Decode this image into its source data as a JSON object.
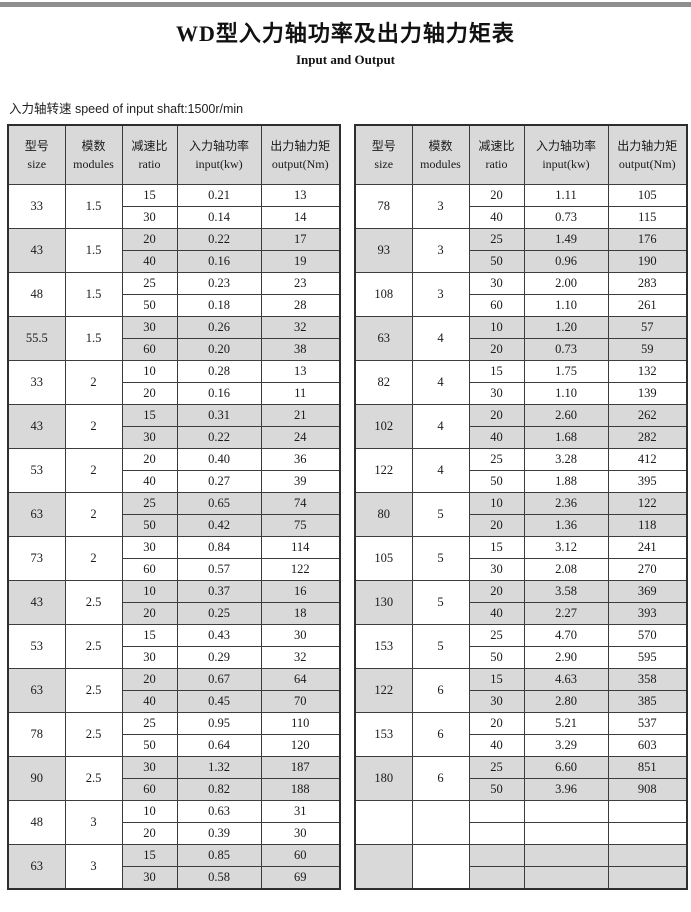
{
  "page": {
    "title": "WD型入力轴功率及出力轴力矩表",
    "subtitle": "Input and Output",
    "speed_note": "入力轴转速 speed of input shaft:1500r/min"
  },
  "colors": {
    "top_bar": "#8f8f8f",
    "header_bg": "#d9d9d9",
    "shaded_group_bg": "#d9d9d9",
    "border": "#3c3c3c"
  },
  "columns": [
    {
      "cjk": "型号",
      "en": "size"
    },
    {
      "cjk": "模数",
      "en": "modules"
    },
    {
      "cjk": "减速比",
      "en": "ratio"
    },
    {
      "cjk": "入力轴功率",
      "en": "input(kw)"
    },
    {
      "cjk": "出力轴力矩",
      "en": "output(Nm)"
    }
  ],
  "tables": [
    {
      "groups": [
        {
          "size": "33",
          "modules": "1.5",
          "shaded": false,
          "rows": [
            [
              "15",
              "0.21",
              "13"
            ],
            [
              "30",
              "0.14",
              "14"
            ]
          ]
        },
        {
          "size": "43",
          "modules": "1.5",
          "shaded": true,
          "rows": [
            [
              "20",
              "0.22",
              "17"
            ],
            [
              "40",
              "0.16",
              "19"
            ]
          ]
        },
        {
          "size": "48",
          "modules": "1.5",
          "shaded": false,
          "rows": [
            [
              "25",
              "0.23",
              "23"
            ],
            [
              "50",
              "0.18",
              "28"
            ]
          ]
        },
        {
          "size": "55.5",
          "modules": "1.5",
          "shaded": true,
          "rows": [
            [
              "30",
              "0.26",
              "32"
            ],
            [
              "60",
              "0.20",
              "38"
            ]
          ]
        },
        {
          "size": "33",
          "modules": "2",
          "shaded": false,
          "rows": [
            [
              "10",
              "0.28",
              "13"
            ],
            [
              "20",
              "0.16",
              "11"
            ]
          ]
        },
        {
          "size": "43",
          "modules": "2",
          "shaded": true,
          "rows": [
            [
              "15",
              "0.31",
              "21"
            ],
            [
              "30",
              "0.22",
              "24"
            ]
          ]
        },
        {
          "size": "53",
          "modules": "2",
          "shaded": false,
          "rows": [
            [
              "20",
              "0.40",
              "36"
            ],
            [
              "40",
              "0.27",
              "39"
            ]
          ]
        },
        {
          "size": "63",
          "modules": "2",
          "shaded": true,
          "rows": [
            [
              "25",
              "0.65",
              "74"
            ],
            [
              "50",
              "0.42",
              "75"
            ]
          ]
        },
        {
          "size": "73",
          "modules": "2",
          "shaded": false,
          "rows": [
            [
              "30",
              "0.84",
              "114"
            ],
            [
              "60",
              "0.57",
              "122"
            ]
          ]
        },
        {
          "size": "43",
          "modules": "2.5",
          "shaded": true,
          "rows": [
            [
              "10",
              "0.37",
              "16"
            ],
            [
              "20",
              "0.25",
              "18"
            ]
          ]
        },
        {
          "size": "53",
          "modules": "2.5",
          "shaded": false,
          "rows": [
            [
              "15",
              "0.43",
              "30"
            ],
            [
              "30",
              "0.29",
              "32"
            ]
          ]
        },
        {
          "size": "63",
          "modules": "2.5",
          "shaded": true,
          "rows": [
            [
              "20",
              "0.67",
              "64"
            ],
            [
              "40",
              "0.45",
              "70"
            ]
          ]
        },
        {
          "size": "78",
          "modules": "2.5",
          "shaded": false,
          "rows": [
            [
              "25",
              "0.95",
              "110"
            ],
            [
              "50",
              "0.64",
              "120"
            ]
          ]
        },
        {
          "size": "90",
          "modules": "2.5",
          "shaded": true,
          "rows": [
            [
              "30",
              "1.32",
              "187"
            ],
            [
              "60",
              "0.82",
              "188"
            ]
          ]
        },
        {
          "size": "48",
          "modules": "3",
          "shaded": false,
          "rows": [
            [
              "10",
              "0.63",
              "31"
            ],
            [
              "20",
              "0.39",
              "30"
            ]
          ]
        },
        {
          "size": "63",
          "modules": "3",
          "shaded": true,
          "rows": [
            [
              "15",
              "0.85",
              "60"
            ],
            [
              "30",
              "0.58",
              "69"
            ]
          ]
        }
      ]
    },
    {
      "groups": [
        {
          "size": "78",
          "modules": "3",
          "shaded": false,
          "rows": [
            [
              "20",
              "1.11",
              "105"
            ],
            [
              "40",
              "0.73",
              "115"
            ]
          ]
        },
        {
          "size": "93",
          "modules": "3",
          "shaded": true,
          "rows": [
            [
              "25",
              "1.49",
              "176"
            ],
            [
              "50",
              "0.96",
              "190"
            ]
          ]
        },
        {
          "size": "108",
          "modules": "3",
          "shaded": false,
          "rows": [
            [
              "30",
              "2.00",
              "283"
            ],
            [
              "60",
              "1.10",
              "261"
            ]
          ]
        },
        {
          "size": "63",
          "modules": "4",
          "shaded": true,
          "rows": [
            [
              "10",
              "1.20",
              "57"
            ],
            [
              "20",
              "0.73",
              "59"
            ]
          ]
        },
        {
          "size": "82",
          "modules": "4",
          "shaded": false,
          "rows": [
            [
              "15",
              "1.75",
              "132"
            ],
            [
              "30",
              "1.10",
              "139"
            ]
          ]
        },
        {
          "size": "102",
          "modules": "4",
          "shaded": true,
          "rows": [
            [
              "20",
              "2.60",
              "262"
            ],
            [
              "40",
              "1.68",
              "282"
            ]
          ]
        },
        {
          "size": "122",
          "modules": "4",
          "shaded": false,
          "rows": [
            [
              "25",
              "3.28",
              "412"
            ],
            [
              "50",
              "1.88",
              "395"
            ]
          ]
        },
        {
          "size": "80",
          "modules": "5",
          "shaded": true,
          "rows": [
            [
              "10",
              "2.36",
              "122"
            ],
            [
              "20",
              "1.36",
              "118"
            ]
          ]
        },
        {
          "size": "105",
          "modules": "5",
          "shaded": false,
          "rows": [
            [
              "15",
              "3.12",
              "241"
            ],
            [
              "30",
              "2.08",
              "270"
            ]
          ]
        },
        {
          "size": "130",
          "modules": "5",
          "shaded": true,
          "rows": [
            [
              "20",
              "3.58",
              "369"
            ],
            [
              "40",
              "2.27",
              "393"
            ]
          ]
        },
        {
          "size": "153",
          "modules": "5",
          "shaded": false,
          "rows": [
            [
              "25",
              "4.70",
              "570"
            ],
            [
              "50",
              "2.90",
              "595"
            ]
          ]
        },
        {
          "size": "122",
          "modules": "6",
          "shaded": true,
          "rows": [
            [
              "15",
              "4.63",
              "358"
            ],
            [
              "30",
              "2.80",
              "385"
            ]
          ]
        },
        {
          "size": "153",
          "modules": "6",
          "shaded": false,
          "rows": [
            [
              "20",
              "5.21",
              "537"
            ],
            [
              "40",
              "3.29",
              "603"
            ]
          ]
        },
        {
          "size": "180",
          "modules": "6",
          "shaded": true,
          "rows": [
            [
              "25",
              "6.60",
              "851"
            ],
            [
              "50",
              "3.96",
              "908"
            ]
          ]
        },
        {
          "size": "",
          "modules": "",
          "shaded": false,
          "rows": [
            [
              "",
              "",
              ""
            ],
            [
              "",
              "",
              ""
            ]
          ]
        },
        {
          "size": "",
          "modules": "",
          "shaded": true,
          "rows": [
            [
              "",
              "",
              ""
            ],
            [
              "",
              "",
              ""
            ]
          ]
        }
      ]
    }
  ]
}
